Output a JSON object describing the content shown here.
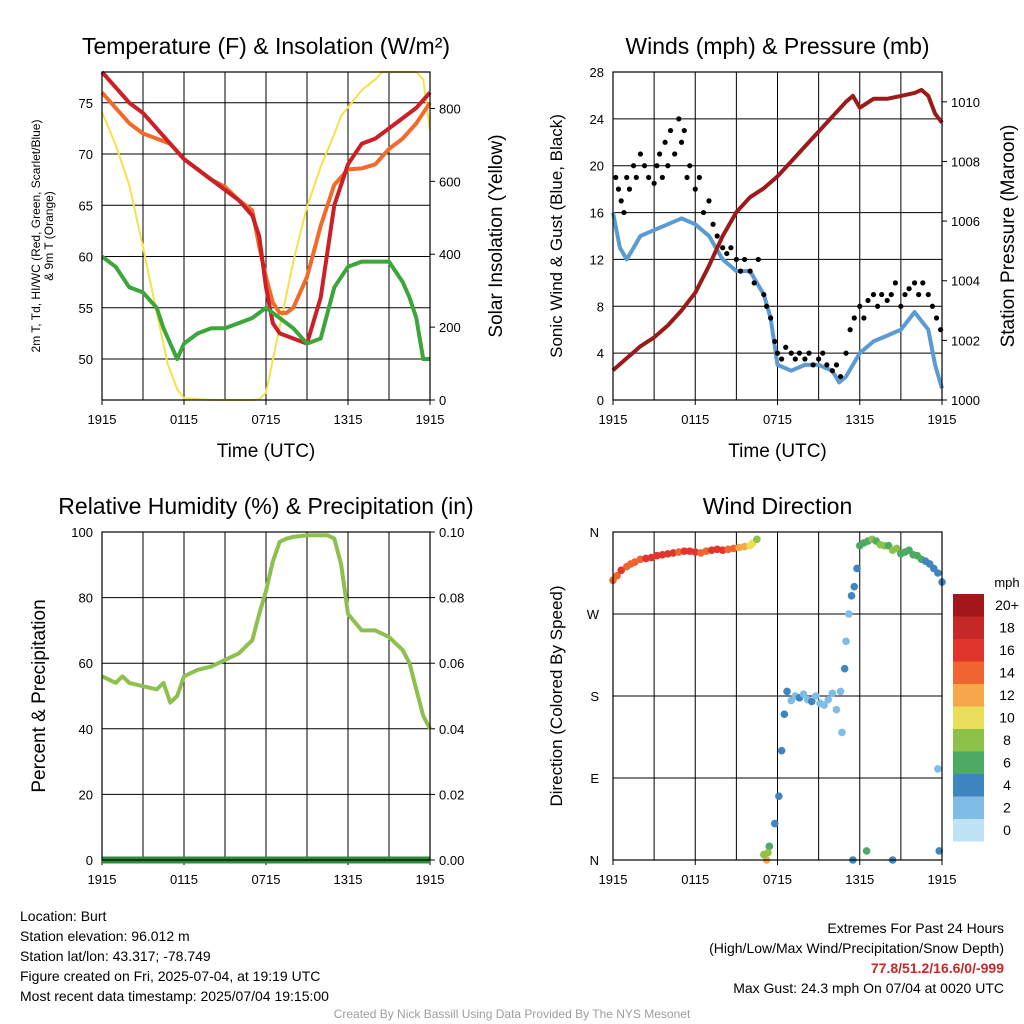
{
  "chart_data": [
    {
      "type": "line",
      "title": "Temperature (F) & Insolation (W/m²)",
      "xlabel": "Time (UTC)",
      "ylabel": "2m T, Td, HI/WC (Red, Green, Scarlet/Blue) & 9m T (Orange)",
      "ylabel_right": "Solar Insolation (Yellow)",
      "ylabel_lines": [
        "2m T, Td, HI/WC (Red, Green, Scarlet/Blue)",
        "& 9m T (Orange)"
      ],
      "xticks": [
        "1915",
        "0115",
        "0715",
        "1315",
        "1915"
      ],
      "x_range": [
        0,
        24
      ],
      "ylim": [
        46,
        78
      ],
      "yticks": [
        50,
        55,
        60,
        65,
        70,
        75
      ],
      "y2lim": [
        0,
        900
      ],
      "y2ticks": [
        0,
        200,
        400,
        600,
        800
      ],
      "grid": true,
      "series": [
        {
          "color": "#f7e04b",
          "axis": "right",
          "x": [
            0,
            1,
            2,
            3,
            4,
            4.8,
            5.5,
            6,
            8,
            10,
            11,
            11.5,
            12,
            13,
            14,
            15,
            16,
            17,
            17.5,
            19,
            20,
            20.5,
            21,
            22,
            23,
            23.5,
            24
          ],
          "y": [
            790,
            700,
            590,
            420,
            240,
            100,
            30,
            5,
            0,
            0,
            0,
            2,
            20,
            200,
            380,
            530,
            640,
            730,
            780,
            850,
            880,
            900,
            900,
            900,
            900,
            880,
            740
          ]
        },
        {
          "color": "#f36b2a",
          "axis": "left",
          "x": [
            0,
            1,
            2,
            3,
            4,
            5,
            6,
            7,
            8,
            9,
            10,
            11,
            11.5,
            12,
            12.5,
            13,
            13.5,
            14,
            15,
            16,
            17,
            18,
            19,
            20,
            21,
            22,
            23,
            24
          ],
          "y": [
            76,
            74.5,
            73,
            72,
            71.5,
            71,
            69.5,
            68.5,
            67.5,
            66.8,
            65.5,
            64.5,
            61,
            58,
            55.5,
            54.5,
            54.5,
            55,
            58,
            63,
            67,
            68.5,
            68.6,
            69,
            70.5,
            71.5,
            73,
            75
          ]
        },
        {
          "color": "#cc2027",
          "axis": "left",
          "x": [
            0,
            1,
            2,
            3,
            4,
            5,
            6,
            7,
            8,
            9,
            10,
            11,
            11.5,
            12,
            12.5,
            13,
            14,
            15,
            16,
            17,
            18,
            19,
            20,
            21,
            22,
            23,
            24
          ],
          "y": [
            78,
            76.5,
            75,
            74,
            72.5,
            71,
            69.5,
            68.5,
            67.5,
            66.5,
            65.5,
            64,
            62,
            57,
            53.5,
            52.5,
            52,
            51.5,
            56,
            65,
            69,
            71,
            71.5,
            72.5,
            73.5,
            74.5,
            76
          ]
        },
        {
          "color": "#3ca63b",
          "axis": "left",
          "x": [
            0,
            1,
            2,
            3,
            4,
            4.5,
            5,
            5.5,
            6,
            7,
            8,
            9,
            10,
            11,
            12,
            13,
            14,
            15,
            16,
            17,
            18,
            19,
            20,
            21,
            22,
            22.5,
            23,
            23.5,
            24
          ],
          "y": [
            60,
            59,
            57,
            56.5,
            55,
            53,
            51.5,
            50,
            51.5,
            52.5,
            53,
            53,
            53.5,
            54,
            55,
            54,
            53,
            51.5,
            52,
            57,
            59,
            59.5,
            59.5,
            59.5,
            57.5,
            56,
            54,
            50,
            50
          ]
        }
      ]
    },
    {
      "type": "line",
      "title": "Winds (mph) & Pressure (mb)",
      "xlabel": "Time (UTC)",
      "ylabel": "Sonic Wind & Gust (Blue, Black)",
      "ylabel_right": "Station Pressure (Maroon)",
      "xticks": [
        "1915",
        "0115",
        "0715",
        "1315",
        "1915"
      ],
      "x_range": [
        0,
        24
      ],
      "ylim": [
        0,
        28
      ],
      "yticks": [
        0,
        4,
        8,
        12,
        16,
        20,
        24,
        28
      ],
      "y2lim": [
        1000,
        1011
      ],
      "y2ticks": [
        1000,
        1002,
        1004,
        1006,
        1008,
        1010
      ],
      "grid": true,
      "series": [
        {
          "color": "#5a9bd4",
          "axis": "left",
          "x": [
            0,
            0.5,
            1,
            1.5,
            2,
            3,
            4,
            5,
            6,
            7,
            8,
            9,
            10,
            10.5,
            11,
            11.5,
            12,
            13,
            14,
            15,
            16,
            16.5,
            17,
            18,
            19,
            20,
            21,
            22,
            23,
            23.5,
            24
          ],
          "y": [
            16,
            13,
            12,
            13,
            14,
            14.5,
            15,
            15.5,
            15,
            14,
            12,
            11,
            11,
            10,
            9,
            7,
            3,
            2.5,
            3,
            3,
            2.5,
            1.5,
            2,
            4,
            5,
            5.5,
            6,
            7.5,
            6,
            3,
            1
          ]
        },
        {
          "color": "#9b1b1b",
          "axis": "right",
          "x": [
            0,
            1,
            2,
            3,
            4,
            5,
            6,
            7,
            8,
            9,
            10,
            11,
            12,
            13,
            14,
            15,
            16,
            17,
            17.5,
            18,
            19,
            20,
            21,
            22,
            22.5,
            23,
            23.5,
            24
          ],
          "y": [
            1001,
            1001.4,
            1001.8,
            1002.1,
            1002.5,
            1003,
            1003.6,
            1004.5,
            1005.5,
            1006.3,
            1006.8,
            1007.1,
            1007.5,
            1008,
            1008.5,
            1009,
            1009.5,
            1010,
            1010.2,
            1009.8,
            1010.1,
            1010.1,
            1010.2,
            1010.3,
            1010.4,
            1010.2,
            1009.6,
            1009.3
          ]
        }
      ],
      "gust_points": {
        "color": "#000000",
        "x": [
          0.2,
          0.4,
          0.6,
          0.8,
          1.0,
          1.2,
          1.5,
          1.7,
          2.0,
          2.3,
          2.6,
          3.0,
          3.2,
          3.4,
          3.6,
          3.8,
          4.0,
          4.2,
          4.5,
          4.8,
          5.0,
          5.2,
          5.4,
          5.6,
          6.0,
          6.3,
          6.6,
          7.0,
          7.3,
          7.6,
          8.0,
          8.3,
          8.6,
          9.0,
          9.3,
          9.6,
          10.0,
          10.3,
          10.6,
          11.0,
          11.2,
          11.5,
          11.8,
          12.0,
          12.3,
          12.6,
          13.0,
          13.3,
          13.6,
          14.0,
          14.3,
          14.6,
          15.0,
          15.3,
          15.6,
          16.0,
          16.3,
          16.6,
          17.0,
          17.3,
          17.6,
          18.0,
          18.3,
          18.6,
          19.0,
          19.3,
          19.6,
          20.0,
          20.3,
          20.6,
          21.0,
          21.3,
          21.6,
          22.0,
          22.3,
          22.6,
          23.0,
          23.3,
          23.6,
          23.9
        ],
        "y": [
          19,
          18,
          17,
          16,
          19,
          18,
          20,
          19,
          21,
          20,
          19,
          18.5,
          20,
          21,
          19,
          22,
          20,
          23,
          21,
          24,
          22,
          23,
          19,
          20,
          18,
          19,
          16,
          17,
          15,
          14,
          13,
          12.5,
          13,
          12,
          11,
          12,
          11,
          10,
          12,
          9,
          8,
          7,
          5,
          4,
          3.5,
          4.5,
          4,
          3.5,
          4,
          3.5,
          4,
          3,
          3.5,
          4,
          3,
          2.5,
          3,
          2,
          4,
          6,
          7,
          8,
          7,
          8.5,
          9,
          8,
          9,
          8.5,
          9,
          10,
          8,
          9,
          9.5,
          10,
          9,
          10,
          9,
          8,
          7,
          6
        ]
      }
    },
    {
      "type": "line",
      "title": "Relative Humidity (%) & Precipitation (in)",
      "xlabel": "",
      "ylabel": "Percent & Precipitation",
      "xticks": [
        "1915",
        "0115",
        "0715",
        "1315",
        "1915"
      ],
      "x_range": [
        0,
        24
      ],
      "ylim": [
        0,
        100
      ],
      "yticks": [
        0,
        20,
        40,
        60,
        80,
        100
      ],
      "y2lim": [
        0,
        0.1
      ],
      "y2ticks": [
        "0.00",
        "0.02",
        "0.04",
        "0.06",
        "0.08",
        "0.10"
      ],
      "grid": true,
      "series": [
        {
          "color": "#8dc04f",
          "axis": "left",
          "x": [
            0,
            0.5,
            1,
            1.5,
            2,
            3,
            4,
            4.5,
            5,
            5.5,
            6,
            7,
            8,
            9,
            10,
            11,
            11.5,
            12,
            12.5,
            13,
            13.5,
            14,
            15,
            16,
            16.5,
            17,
            17.5,
            18,
            19,
            20,
            21,
            22,
            22.5,
            23,
            23.5,
            24
          ],
          "y": [
            56,
            55,
            54,
            56,
            54,
            53,
            52,
            54,
            48,
            50,
            56,
            58,
            59,
            61,
            63,
            67,
            75,
            82,
            91,
            97,
            98,
            98.5,
            99,
            99,
            99,
            98,
            90,
            75,
            70,
            70,
            68,
            64,
            60,
            52,
            44,
            40
          ]
        },
        {
          "color": "#2e8b3a",
          "axis": "right",
          "x": [
            0,
            24
          ],
          "y": [
            0,
            0
          ]
        }
      ]
    },
    {
      "type": "scatter",
      "title": "Wind Direction",
      "xlabel": "",
      "ylabel": "Direction (Colored By Speed)",
      "xticks": [
        "1915",
        "0115",
        "0715",
        "1315",
        "1915"
      ],
      "x_range": [
        0,
        24
      ],
      "yticks": [
        "N",
        "E",
        "S",
        "W",
        "N"
      ],
      "ylim": [
        0,
        360
      ],
      "grid": true,
      "colorbar": {
        "title": "mph",
        "labels": [
          "20+",
          "18",
          "16",
          "14",
          "12",
          "10",
          "8",
          "6",
          "4",
          "2",
          "0"
        ],
        "colors": [
          "#a3171b",
          "#c62828",
          "#e0352d",
          "#f0652f",
          "#f7a74a",
          "#e9df5a",
          "#8cc24a",
          "#4caa65",
          "#3f86c0",
          "#80bde6",
          "#bfe3f5"
        ]
      },
      "points": {
        "x": [
          0,
          0.3,
          0.6,
          1.0,
          1.3,
          1.6,
          2.0,
          2.4,
          2.8,
          3.2,
          3.6,
          4.0,
          4.4,
          4.8,
          5.2,
          5.6,
          6.0,
          6.4,
          6.8,
          7.2,
          7.6,
          8.0,
          8.4,
          8.8,
          9.2,
          9.6,
          10.0,
          10.2,
          10.5,
          11.2,
          11.4,
          11.8,
          12.1,
          12.3,
          12.5,
          12.7,
          13.0,
          13.3,
          13.6,
          13.9,
          14.2,
          14.5,
          14.8,
          15.1,
          15.4,
          15.7,
          16.0,
          16.3,
          16.6,
          16.7,
          16.9,
          17.0,
          17.2,
          17.4,
          17.6,
          17.8,
          18.0,
          18.3,
          18.6,
          18.9,
          19.2,
          19.5,
          19.8,
          20.1,
          20.4,
          20.7,
          21.0,
          21.3,
          21.6,
          21.9,
          22.2,
          22.5,
          22.8,
          23.1,
          23.4,
          23.7,
          24.0,
          11.0,
          11.3,
          17.5,
          18.5,
          20.4,
          23.7,
          23.8
        ],
        "y": [
          307,
          312,
          318,
          322,
          325,
          327,
          330,
          331,
          332,
          334,
          335,
          336,
          337,
          338,
          339,
          339,
          338,
          337,
          339,
          340,
          341,
          340,
          341,
          342,
          343,
          344,
          345,
          348,
          352,
          0,
          15,
          40,
          70,
          120,
          160,
          185,
          175,
          180,
          178,
          182,
          176,
          174,
          180,
          172,
          170,
          176,
          183,
          165,
          185,
          140,
          210,
          240,
          270,
          290,
          300,
          320,
          345,
          348,
          350,
          352,
          350,
          346,
          345,
          345,
          340,
          342,
          336,
          338,
          340,
          335,
          334,
          330,
          328,
          325,
          320,
          315,
          305,
          6,
          8,
          0,
          10,
          0,
          100,
          10
        ],
        "speeds": [
          13,
          14,
          15,
          14,
          13,
          13,
          14,
          15,
          15,
          15,
          16,
          16,
          15,
          14,
          15,
          16,
          15,
          14,
          14,
          15,
          16,
          15,
          14,
          13,
          12,
          11,
          10,
          9,
          8,
          12,
          6,
          4,
          3,
          3,
          3,
          3,
          2,
          2,
          3,
          2,
          2,
          3,
          2,
          1,
          1,
          2,
          1,
          2,
          1,
          2,
          3,
          2,
          2,
          3,
          3,
          4,
          5,
          6,
          6,
          7,
          6,
          7,
          7,
          6,
          7,
          7,
          6,
          6,
          5,
          5,
          6,
          5,
          4,
          4,
          4,
          3,
          3,
          7,
          8,
          4,
          5,
          4,
          2,
          3
        ]
      }
    }
  ],
  "station_info": {
    "location": "Location: Burt",
    "elevation": "Station elevation: 96.012 m",
    "latlon": "Station lat/lon: 43.317; -78.749",
    "created": "Figure created on Fri, 2025-07-04, at 19:19 UTC",
    "recent": "Most recent data timestamp: 2025/07/04 19:15:00"
  },
  "extremes": {
    "title": "Extremes For Past 24 Hours",
    "subtitle": "(High/Low/Max Wind/Precipitation/Snow Depth)",
    "values": "77.8/51.2/16.6/0/-999",
    "values_color": "#c62828",
    "gust": "Max Gust: 24.3 mph On 07/04 at 0020 UTC"
  },
  "credit": "Created By Nick Bassill Using Data Provided By The NYS Mesonet"
}
